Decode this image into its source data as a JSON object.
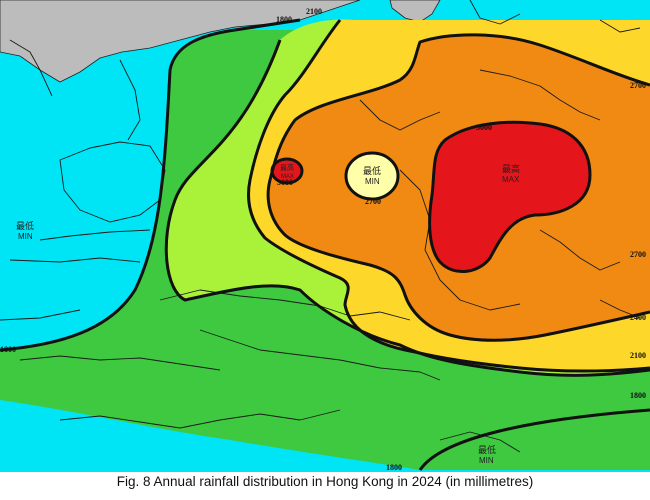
{
  "caption": "Fig. 8 Annual rainfall distribution in Hong Kong in 2024 (in millimetres)",
  "colors": {
    "sea": "#00e5f5",
    "land_outside": "#bcbcbc",
    "band_lt_1800": "#00e5f5",
    "band_1800_2100": "#3fc940",
    "band_2100_2400": "#aaf23a",
    "band_2400_2700": "#fdd82a",
    "band_2700_3000": "#f18a12",
    "band_gt_3000": "#e4161c",
    "min_circle": "#ffffaa"
  },
  "contour_labels": {
    "top_1800": "1800",
    "top_2100": "2100",
    "right_2700_top": "2700",
    "right_2700_mid": "2700",
    "right_2400": "2400",
    "right_2100": "2100",
    "right_1800": "1800",
    "bottom_1800": "1800",
    "left_1800": "1800",
    "ne_3000": "3000",
    "local_max_value": "3000",
    "local_min_value": "2700"
  },
  "markers": {
    "max_small": {
      "zh": "最高",
      "en": "MAX"
    },
    "min_center": {
      "zh": "最低",
      "en": "MIN"
    },
    "max_main": {
      "zh": "最高",
      "en": "MAX"
    },
    "min_west": {
      "zh": "最低",
      "en": "MIN"
    },
    "min_southeast": {
      "zh": "最低",
      "en": "MIN"
    }
  }
}
